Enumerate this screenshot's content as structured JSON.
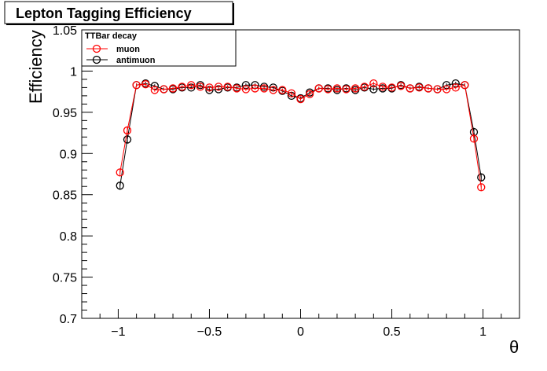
{
  "chart_data": {
    "type": "scatter",
    "title": "Lepton Tagging Efficiency",
    "xlabel": "θ",
    "ylabel": "Efficiency",
    "xlim": [
      -1.2,
      1.2
    ],
    "ylim": [
      0.7,
      1.05
    ],
    "xticks": [
      -1,
      -0.5,
      0,
      0.5,
      1
    ],
    "xtick_labels": [
      "−1",
      "−0.5",
      "0",
      "0.5",
      "1"
    ],
    "yticks": [
      0.7,
      0.75,
      0.8,
      0.85,
      0.9,
      0.95,
      1,
      1.05
    ],
    "ytick_labels": [
      "0.7",
      "0.75",
      "0.8",
      "0.85",
      "0.9",
      "0.95",
      "1",
      "1.05"
    ],
    "legend": {
      "header": "TTBar decay",
      "placement": "top-left"
    },
    "x": [
      -0.99,
      -0.95,
      -0.9,
      -0.85,
      -0.8,
      -0.75,
      -0.7,
      -0.65,
      -0.6,
      -0.55,
      -0.5,
      -0.45,
      -0.4,
      -0.35,
      -0.3,
      -0.25,
      -0.2,
      -0.15,
      -0.1,
      -0.05,
      0.0,
      0.05,
      0.1,
      0.15,
      0.2,
      0.25,
      0.3,
      0.35,
      0.4,
      0.45,
      0.5,
      0.55,
      0.6,
      0.65,
      0.7,
      0.75,
      0.8,
      0.85,
      0.9,
      0.95,
      0.99
    ],
    "series": [
      {
        "name": "muon",
        "color": "#ff0000",
        "values": [
          0.877,
          0.928,
          0.983,
          0.984,
          0.977,
          0.978,
          0.979,
          0.981,
          0.983,
          0.981,
          0.98,
          0.981,
          0.981,
          0.979,
          0.978,
          0.979,
          0.979,
          0.977,
          0.977,
          0.973,
          0.966,
          0.972,
          0.979,
          0.978,
          0.979,
          0.978,
          0.979,
          0.981,
          0.985,
          0.981,
          0.98,
          0.982,
          0.979,
          0.98,
          0.979,
          0.978,
          0.978,
          0.98,
          0.983,
          0.918,
          0.859
        ],
        "errors": [
          0.004,
          0.004,
          0.002,
          0.002,
          0.002,
          0.002,
          0.002,
          0.002,
          0.002,
          0.002,
          0.002,
          0.002,
          0.002,
          0.002,
          0.002,
          0.002,
          0.002,
          0.002,
          0.002,
          0.002,
          0.002,
          0.002,
          0.002,
          0.002,
          0.002,
          0.002,
          0.002,
          0.002,
          0.002,
          0.002,
          0.002,
          0.002,
          0.002,
          0.002,
          0.002,
          0.002,
          0.002,
          0.002,
          0.002,
          0.004,
          0.004
        ]
      },
      {
        "name": "antimuon",
        "color": "#000000",
        "values": [
          0.861,
          0.917,
          0.983,
          0.985,
          0.982,
          0.978,
          0.978,
          0.98,
          0.98,
          0.983,
          0.977,
          0.978,
          0.98,
          0.98,
          0.983,
          0.983,
          0.981,
          0.98,
          0.976,
          0.97,
          0.967,
          0.974,
          0.979,
          0.979,
          0.977,
          0.979,
          0.977,
          0.98,
          0.978,
          0.979,
          0.979,
          0.983,
          0.979,
          0.981,
          0.979,
          0.978,
          0.983,
          0.985,
          0.983,
          0.926,
          0.871
        ],
        "errors": [
          0.005,
          0.005,
          0.002,
          0.002,
          0.002,
          0.002,
          0.002,
          0.002,
          0.002,
          0.002,
          0.002,
          0.002,
          0.002,
          0.002,
          0.002,
          0.002,
          0.002,
          0.002,
          0.002,
          0.002,
          0.002,
          0.002,
          0.002,
          0.002,
          0.002,
          0.002,
          0.002,
          0.002,
          0.002,
          0.002,
          0.002,
          0.002,
          0.002,
          0.002,
          0.002,
          0.002,
          0.002,
          0.002,
          0.002,
          0.005,
          0.005
        ]
      }
    ]
  }
}
